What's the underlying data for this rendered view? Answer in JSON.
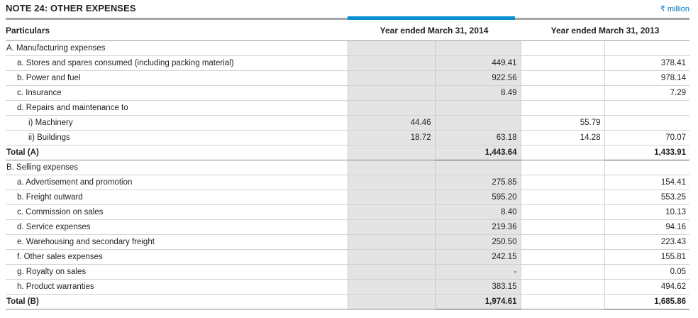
{
  "note": {
    "title": "NOTE 24: OTHER EXPENSES",
    "unit": "₹ million"
  },
  "header": {
    "particulars": "Particulars",
    "year_2014": "Year ended March 31, 2014",
    "year_2013": "Year ended March 31, 2013"
  },
  "rows": [
    {
      "type": "section",
      "label": "A. Manufacturing expenses",
      "c1": "",
      "c2": "",
      "c3": "",
      "c4": ""
    },
    {
      "type": "item",
      "label": "a. Stores and spares consumed (including packing material)",
      "c1": "",
      "c2": "449.41",
      "c3": "",
      "c4": "378.41"
    },
    {
      "type": "item",
      "label": "b. Power and fuel",
      "c1": "",
      "c2": "922.56",
      "c3": "",
      "c4": "978.14"
    },
    {
      "type": "item",
      "label": "c. Insurance",
      "c1": "",
      "c2": "8.49",
      "c3": "",
      "c4": "7.29"
    },
    {
      "type": "item",
      "label": "d. Repairs and maintenance to",
      "c1": "",
      "c2": "",
      "c3": "",
      "c4": ""
    },
    {
      "type": "sub",
      "label": "i) Machinery",
      "c1": "44.46",
      "c2": "",
      "c3": "55.79",
      "c4": ""
    },
    {
      "type": "sub",
      "label": "ii) Buildings",
      "c1": "18.72",
      "c2": "63.18",
      "c3": "14.28",
      "c4": "70.07"
    },
    {
      "type": "total",
      "label": "Total (A)",
      "c1": "",
      "c2": "1,443.64",
      "c3": "",
      "c4": "1,433.91"
    },
    {
      "type": "section",
      "label": "B. Selling expenses",
      "c1": "",
      "c2": "",
      "c3": "",
      "c4": ""
    },
    {
      "type": "item",
      "label": "a. Advertisement and promotion",
      "c1": "",
      "c2": "275.85",
      "c3": "",
      "c4": "154.41"
    },
    {
      "type": "item",
      "label": "b. Freight outward",
      "c1": "",
      "c2": "595.20",
      "c3": "",
      "c4": "553.25"
    },
    {
      "type": "item",
      "label": "c. Commission on sales",
      "c1": "",
      "c2": "8.40",
      "c3": "",
      "c4": "10.13"
    },
    {
      "type": "item",
      "label": "d. Service expenses",
      "c1": "",
      "c2": "219.36",
      "c3": "",
      "c4": "94.16"
    },
    {
      "type": "item",
      "label": "e. Warehousing and secondary freight",
      "c1": "",
      "c2": "250.50",
      "c3": "",
      "c4": "223.43"
    },
    {
      "type": "item",
      "label": "f. Other sales expenses",
      "c1": "",
      "c2": "242.15",
      "c3": "",
      "c4": "155.81"
    },
    {
      "type": "item",
      "label": "g. Royalty on sales",
      "c1": "",
      "c2": "-",
      "c3": "",
      "c4": "0.05"
    },
    {
      "type": "item",
      "label": "h. Product warranties",
      "c1": "",
      "c2": "383.15",
      "c3": "",
      "c4": "494.62"
    },
    {
      "type": "total",
      "label": "Total (B)",
      "c1": "",
      "c2": "1,974.61",
      "c3": "",
      "c4": "1,685.86"
    }
  ]
}
